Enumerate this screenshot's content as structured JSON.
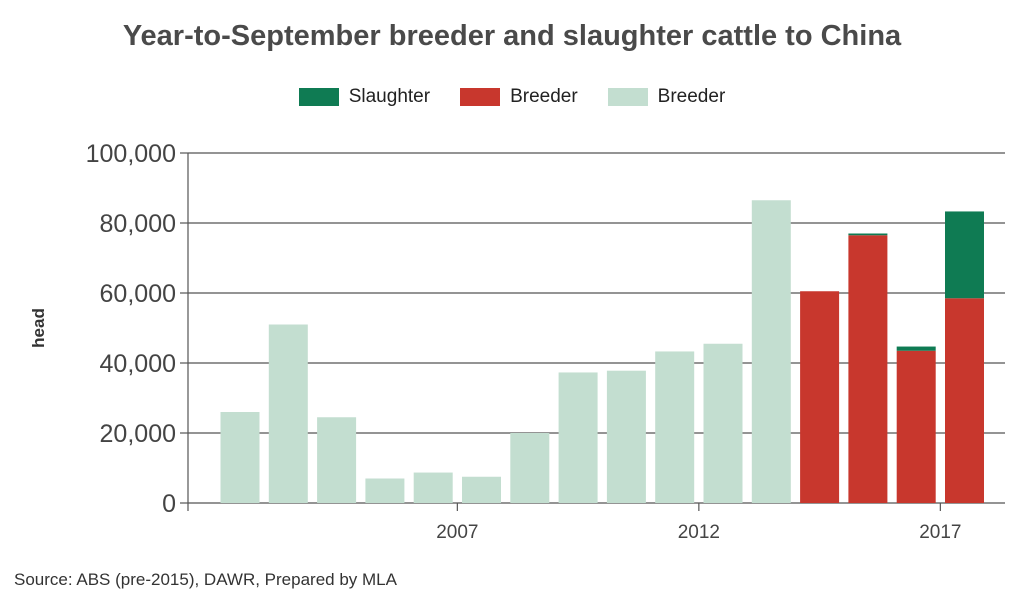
{
  "chart_data": {
    "type": "bar",
    "title": "Year-to-September breeder and slaughter cattle to China",
    "ylabel": "head",
    "xlabel": "",
    "ylim": [
      0,
      100000
    ],
    "yticks": [
      0,
      20000,
      40000,
      60000,
      80000,
      100000
    ],
    "ytick_labels": [
      "0",
      "20,000",
      "40,000",
      "60,000",
      "80,000",
      "100,000"
    ],
    "x": [
      2002,
      2003,
      2004,
      2005,
      2006,
      2007,
      2008,
      2009,
      2010,
      2011,
      2012,
      2013,
      2014,
      2015,
      2016,
      2017,
      2018
    ],
    "xtick_labels": [
      "2007",
      "2012",
      "2017"
    ],
    "xtick_positions": [
      2006.5,
      2011.5,
      2016.5
    ],
    "stacked": true,
    "series": [
      {
        "name": "Breeder",
        "color": "#c3ded0",
        "values": [
          26000,
          51000,
          24500,
          7000,
          8700,
          7500,
          20000,
          37300,
          37800,
          43300,
          45500,
          86500,
          0,
          0,
          0,
          0,
          0
        ]
      },
      {
        "name": "Breeder",
        "color": "#c8372d",
        "values": [
          0,
          0,
          0,
          0,
          0,
          0,
          0,
          0,
          0,
          0,
          0,
          0,
          60500,
          76500,
          43500,
          58500,
          0
        ]
      },
      {
        "name": "Slaughter",
        "color": "#0f7b53",
        "values": [
          0,
          0,
          0,
          0,
          0,
          0,
          0,
          0,
          0,
          0,
          0,
          0,
          0,
          500,
          1200,
          24800,
          0
        ]
      }
    ],
    "legend": {
      "placement": "top",
      "entries": [
        {
          "label": "Slaughter",
          "color": "#0f7b53"
        },
        {
          "label": "Breeder",
          "color": "#c8372d"
        },
        {
          "label": "Breeder",
          "color": "#c3ded0"
        }
      ]
    },
    "grid": true,
    "source": "Source: ABS (pre-2015), DAWR, Prepared by MLA"
  }
}
